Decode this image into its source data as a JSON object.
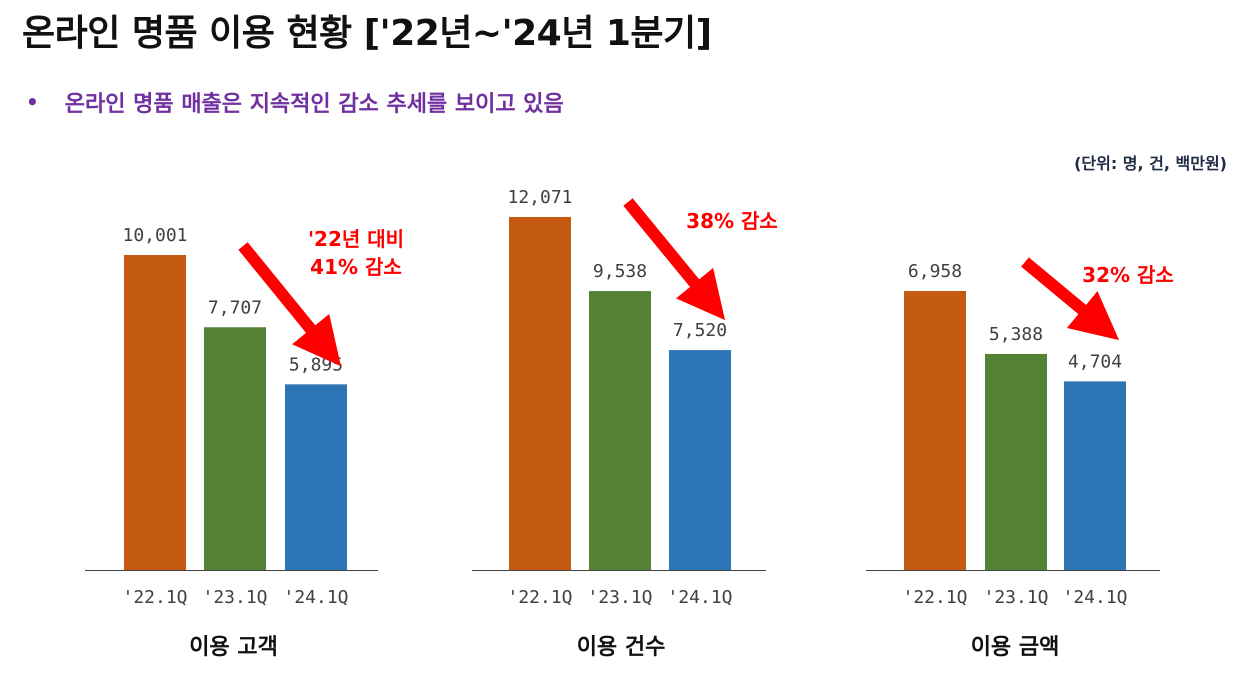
{
  "title": "온라인 명품 이용 현황 ['22년~'24년 1분기]",
  "subtitle": "온라인 명품 매출은 지속적인 감소 추세를 보이고 있음",
  "bullet": "•",
  "unit_note": "(단위: 명, 건, 백만원)",
  "colors": {
    "title": "#111111",
    "subtitle": "#7030a0",
    "bar_22": "#c55a11",
    "bar_23": "#548235",
    "bar_24": "#2e75b6",
    "annotation": "#ff0000",
    "axis": "#444444",
    "label": "#404040"
  },
  "chart_data": [
    {
      "type": "bar",
      "title": "이용 고객",
      "categories": [
        "'22.1Q",
        "'23.1Q",
        "'24.1Q"
      ],
      "values": [
        10001,
        7707,
        5895
      ],
      "value_labels": [
        "10,001",
        "7,707",
        "5,895"
      ],
      "annotation": [
        "'22년 대비",
        "41% 감소"
      ],
      "ylim": [
        0,
        10001
      ]
    },
    {
      "type": "bar",
      "title": "이용 건수",
      "categories": [
        "'22.1Q",
        "'23.1Q",
        "'24.1Q"
      ],
      "values": [
        12071,
        9538,
        7520
      ],
      "value_labels": [
        "12,071",
        "9,538",
        "7,520"
      ],
      "annotation": [
        "38% 감소"
      ],
      "ylim": [
        0,
        12071
      ]
    },
    {
      "type": "bar",
      "title": "이용 금액",
      "categories": [
        "'22.1Q",
        "'23.1Q",
        "'24.1Q"
      ],
      "values": [
        6958,
        5388,
        4704
      ],
      "value_labels": [
        "6,958",
        "5,388",
        "4,704"
      ],
      "annotation": [
        "32% 감소"
      ],
      "ylim": [
        0,
        6958
      ]
    }
  ]
}
